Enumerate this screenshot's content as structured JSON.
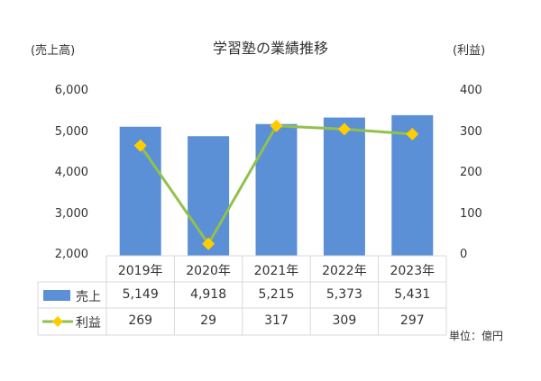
{
  "chart_data": {
    "type": "bar+line",
    "title": "学習塾の業績推移",
    "y_left_title": "(売上高)",
    "y_right_title": "(利益)",
    "categories": [
      "2019年",
      "2020年",
      "2021年",
      "2022年",
      "2023年"
    ],
    "series": [
      {
        "name": "売上",
        "type": "bar",
        "axis": "left",
        "color": "#5b8fd6",
        "values": [
          5149,
          4918,
          5215,
          5373,
          5431
        ]
      },
      {
        "name": "利益",
        "type": "line",
        "axis": "right",
        "color": "#92c14b",
        "marker_color": "#ffcc00",
        "values": [
          269,
          29,
          317,
          309,
          297
        ]
      }
    ],
    "y_left": {
      "min": 2000,
      "max": 6000,
      "ticks": [
        "2,000",
        "3,000",
        "4,000",
        "5,000",
        "6,000"
      ]
    },
    "y_right": {
      "min": 0,
      "max": 400,
      "ticks": [
        "0",
        "100",
        "200",
        "300",
        "400"
      ]
    },
    "table": {
      "rows": [
        {
          "label": "売上",
          "values": [
            "5,149",
            "4,918",
            "5,215",
            "5,373",
            "5,431"
          ]
        },
        {
          "label": "利益",
          "values": [
            "269",
            "29",
            "317",
            "309",
            "297"
          ]
        }
      ]
    },
    "unit_note": "単位：億円",
    "grid": false
  }
}
